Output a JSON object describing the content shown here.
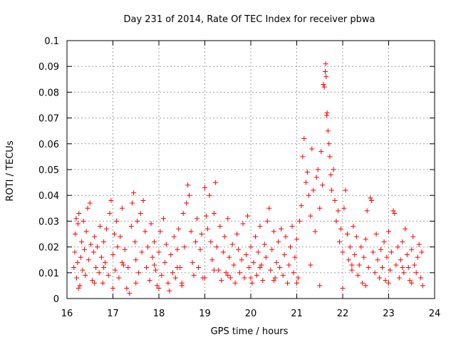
{
  "chart_data": {
    "type": "scatter",
    "title": "Day 231 of 2014, Rate Of TEC Index for receiver pbwa",
    "xlabel": "GPS time / hours",
    "ylabel": "ROTI / TECUs",
    "xlim": [
      16,
      24
    ],
    "ylim": [
      0,
      0.1
    ],
    "x_ticks": [
      16,
      17,
      18,
      19,
      20,
      21,
      22,
      23,
      24
    ],
    "y_ticks": [
      0,
      0.01,
      0.02,
      0.03,
      0.04,
      0.05,
      0.06,
      0.07,
      0.08,
      0.09,
      0.1
    ],
    "x_tick_labels": [
      "16",
      "17",
      "18",
      "19",
      "20",
      "21",
      "22",
      "23",
      "24"
    ],
    "y_tick_labels": [
      "0",
      "0.01",
      "0.02",
      "0.03",
      "0.04",
      "0.05",
      "0.06",
      "0.07",
      "0.08",
      "0.09",
      "0.1"
    ],
    "grid": true,
    "marker": "+",
    "color": "#ff0000",
    "series": [
      {
        "name": "ROTI",
        "points": [
          [
            16.15,
            0.012
          ],
          [
            16.17,
            0.018
          ],
          [
            16.18,
            0.025
          ],
          [
            16.2,
            0.031
          ],
          [
            16.21,
            0.008
          ],
          [
            16.23,
            0.014
          ],
          [
            16.24,
            0.029
          ],
          [
            16.26,
            0.033
          ],
          [
            16.28,
            0.005
          ],
          [
            16.3,
            0.016
          ],
          [
            16.32,
            0.022
          ],
          [
            16.34,
            0.011
          ],
          [
            16.36,
            0.03
          ],
          [
            16.38,
            0.019
          ],
          [
            16.4,
            0.009
          ],
          [
            16.42,
            0.026
          ],
          [
            16.45,
            0.035
          ],
          [
            16.47,
            0.015
          ],
          [
            16.5,
            0.037
          ],
          [
            16.52,
            0.021
          ],
          [
            16.55,
            0.007
          ],
          [
            16.58,
            0.018
          ],
          [
            16.6,
            0.024
          ],
          [
            16.63,
            0.012
          ],
          [
            16.66,
            0.02
          ],
          [
            16.7,
            0.01
          ],
          [
            16.72,
            0.028
          ],
          [
            16.75,
            0.016
          ],
          [
            16.78,
            0.006
          ],
          [
            16.8,
            0.022
          ],
          [
            16.83,
            0.014
          ],
          [
            16.86,
            0.027
          ],
          [
            16.9,
            0.009
          ],
          [
            16.93,
            0.033
          ],
          [
            16.96,
            0.038
          ],
          [
            17.0,
            0.017
          ],
          [
            17.03,
            0.025
          ],
          [
            17.05,
            0.011
          ],
          [
            17.08,
            0.03
          ],
          [
            17.1,
            0.02
          ],
          [
            17.13,
            0.008
          ],
          [
            17.16,
            0.024
          ],
          [
            17.2,
            0.035
          ],
          [
            17.23,
            0.013
          ],
          [
            17.26,
            0.019
          ],
          [
            17.3,
            0.004
          ],
          [
            17.33,
            0.012
          ],
          [
            17.36,
            0.002
          ],
          [
            17.4,
            0.028
          ],
          [
            17.42,
            0.037
          ],
          [
            17.45,
            0.041
          ],
          [
            17.48,
            0.022
          ],
          [
            17.5,
            0.015
          ],
          [
            17.53,
            0.03
          ],
          [
            17.56,
            0.01
          ],
          [
            17.6,
            0.033
          ],
          [
            17.63,
            0.018
          ],
          [
            17.66,
            0.038
          ],
          [
            17.7,
            0.026
          ],
          [
            17.73,
            0.012
          ],
          [
            17.76,
            0.02
          ],
          [
            17.8,
            0.007
          ],
          [
            17.83,
            0.029
          ],
          [
            17.86,
            0.016
          ],
          [
            17.9,
            0.022
          ],
          [
            17.93,
            0.011
          ],
          [
            17.96,
            0.005
          ],
          [
            18.0,
            0.018
          ],
          [
            18.03,
            0.026
          ],
          [
            18.06,
            0.009
          ],
          [
            18.1,
            0.031
          ],
          [
            18.13,
            0.014
          ],
          [
            18.16,
            0.021
          ],
          [
            18.2,
            0.006
          ],
          [
            18.23,
            0.003
          ],
          [
            18.26,
            0.017
          ],
          [
            18.3,
            0.01
          ],
          [
            18.33,
            0.024
          ],
          [
            18.36,
            0.008
          ],
          [
            18.4,
            0.019
          ],
          [
            18.43,
            0.027
          ],
          [
            18.46,
            0.012
          ],
          [
            18.5,
            0.005
          ],
          [
            18.53,
            0.033
          ],
          [
            18.56,
            0.02
          ],
          [
            18.6,
            0.037
          ],
          [
            18.63,
            0.044
          ],
          [
            18.66,
            0.04
          ],
          [
            18.7,
            0.026
          ],
          [
            18.73,
            0.014
          ],
          [
            18.76,
            0.009
          ],
          [
            18.8,
            0.022
          ],
          [
            18.83,
            0.031
          ],
          [
            18.86,
            0.012
          ],
          [
            18.9,
            0.019
          ],
          [
            18.93,
            0.025
          ],
          [
            18.96,
            0.008
          ],
          [
            19.0,
            0.043
          ],
          [
            19.03,
            0.032
          ],
          [
            19.06,
            0.027
          ],
          [
            19.1,
            0.04
          ],
          [
            19.13,
            0.022
          ],
          [
            19.16,
            0.015
          ],
          [
            19.2,
            0.033
          ],
          [
            19.23,
            0.045
          ],
          [
            19.26,
            0.02
          ],
          [
            19.3,
            0.011
          ],
          [
            19.33,
            0.028
          ],
          [
            19.36,
            0.007
          ],
          [
            19.4,
            0.018
          ],
          [
            19.43,
            0.024
          ],
          [
            19.46,
            0.01
          ],
          [
            19.5,
            0.031
          ],
          [
            19.53,
            0.016
          ],
          [
            19.56,
            0.008
          ],
          [
            19.6,
            0.021
          ],
          [
            19.63,
            0.013
          ],
          [
            19.66,
            0.006
          ],
          [
            19.7,
            0.025
          ],
          [
            19.73,
            0.019
          ],
          [
            19.76,
            0.01
          ],
          [
            19.8,
            0.015
          ],
          [
            19.83,
            0.029
          ],
          [
            19.86,
            0.008
          ],
          [
            19.9,
            0.017
          ],
          [
            19.93,
            0.032
          ],
          [
            19.96,
            0.012
          ],
          [
            20.0,
            0.02
          ],
          [
            20.03,
            0.006
          ],
          [
            20.06,
            0.014
          ],
          [
            20.1,
            0.024
          ],
          [
            20.13,
            0.009
          ],
          [
            20.16,
            0.018
          ],
          [
            20.2,
            0.028
          ],
          [
            20.23,
            0.013
          ],
          [
            20.26,
            0.007
          ],
          [
            20.3,
            0.021
          ],
          [
            20.33,
            0.016
          ],
          [
            20.36,
            0.03
          ],
          [
            20.4,
            0.035
          ],
          [
            20.43,
            0.011
          ],
          [
            20.46,
            0.019
          ],
          [
            20.5,
            0.026
          ],
          [
            20.53,
            0.008
          ],
          [
            20.56,
            0.014
          ],
          [
            20.6,
            0.022
          ],
          [
            20.63,
            0.012
          ],
          [
            20.66,
            0.027
          ],
          [
            20.7,
            0.009
          ],
          [
            20.73,
            0.017
          ],
          [
            20.76,
            0.024
          ],
          [
            20.8,
            0.006
          ],
          [
            20.83,
            0.013
          ],
          [
            20.86,
            0.02
          ],
          [
            20.9,
            0.028
          ],
          [
            20.93,
            0.01
          ],
          [
            20.96,
            0.016
          ],
          [
            21.0,
            0.023
          ],
          [
            21.03,
            0.008
          ],
          [
            21.06,
            0.03
          ],
          [
            21.1,
            0.036
          ],
          [
            21.13,
            0.055
          ],
          [
            21.16,
            0.062
          ],
          [
            21.2,
            0.045
          ],
          [
            21.23,
            0.049
          ],
          [
            21.26,
            0.04
          ],
          [
            21.3,
            0.032
          ],
          [
            21.33,
            0.058
          ],
          [
            21.36,
            0.042
          ],
          [
            21.4,
            0.026
          ],
          [
            21.43,
            0.047
          ],
          [
            21.46,
            0.05
          ],
          [
            21.5,
            0.035
          ],
          [
            21.53,
            0.057
          ],
          [
            21.56,
            0.044
          ],
          [
            21.58,
            0.083
          ],
          [
            21.6,
            0.082
          ],
          [
            21.62,
            0.088
          ],
          [
            21.63,
            0.091
          ],
          [
            21.64,
            0.086
          ],
          [
            21.65,
            0.071
          ],
          [
            21.66,
            0.072
          ],
          [
            21.68,
            0.065
          ],
          [
            21.7,
            0.06
          ],
          [
            21.72,
            0.055
          ],
          [
            21.74,
            0.048
          ],
          [
            21.76,
            0.042
          ],
          [
            21.8,
            0.05
          ],
          [
            21.83,
            0.038
          ],
          [
            21.86,
            0.03
          ],
          [
            21.9,
            0.034
          ],
          [
            21.93,
            0.022
          ],
          [
            21.96,
            0.027
          ],
          [
            22.0,
            0.018
          ],
          [
            22.03,
            0.035
          ],
          [
            22.06,
            0.042
          ],
          [
            22.1,
            0.025
          ],
          [
            22.13,
            0.015
          ],
          [
            22.16,
            0.02
          ],
          [
            22.2,
            0.011
          ],
          [
            22.23,
            0.028
          ],
          [
            22.26,
            0.017
          ],
          [
            22.3,
            0.024
          ],
          [
            22.33,
            0.009
          ],
          [
            22.36,
            0.013
          ],
          [
            22.4,
            0.02
          ],
          [
            22.43,
            0.006
          ],
          [
            22.46,
            0.016
          ],
          [
            22.5,
            0.023
          ],
          [
            22.53,
            0.034
          ],
          [
            22.56,
            0.012
          ],
          [
            22.6,
            0.039
          ],
          [
            22.63,
            0.038
          ],
          [
            22.66,
            0.018
          ],
          [
            22.7,
            0.01
          ],
          [
            22.73,
            0.025
          ],
          [
            22.76,
            0.015
          ],
          [
            22.8,
            0.008
          ],
          [
            22.83,
            0.019
          ],
          [
            22.86,
            0.012
          ],
          [
            22.9,
            0.022
          ],
          [
            22.93,
            0.007
          ],
          [
            22.96,
            0.016
          ],
          [
            23.0,
            0.026
          ],
          [
            23.03,
            0.011
          ],
          [
            23.06,
            0.018
          ],
          [
            23.1,
            0.034
          ],
          [
            23.13,
            0.033
          ],
          [
            23.16,
            0.013
          ],
          [
            23.2,
            0.02
          ],
          [
            23.23,
            0.008
          ],
          [
            23.26,
            0.015
          ],
          [
            23.3,
            0.022
          ],
          [
            23.33,
            0.01
          ],
          [
            23.36,
            0.027
          ],
          [
            23.4,
            0.017
          ],
          [
            23.43,
            0.012
          ],
          [
            23.46,
            0.007
          ],
          [
            23.5,
            0.019
          ],
          [
            23.53,
            0.024
          ],
          [
            23.56,
            0.013
          ],
          [
            23.6,
            0.01
          ],
          [
            23.63,
            0.016
          ],
          [
            23.66,
            0.021
          ],
          [
            23.7,
            0.008
          ],
          [
            23.72,
            0.018
          ],
          [
            23.74,
            0.005
          ],
          [
            16.25,
            0.004
          ],
          [
            16.6,
            0.006
          ],
          [
            17.0,
            0.004
          ],
          [
            17.5,
            0.006
          ],
          [
            18.0,
            0.004
          ],
          [
            18.5,
            0.006
          ],
          [
            19.0,
            0.008
          ],
          [
            19.5,
            0.009
          ],
          [
            20.0,
            0.008
          ],
          [
            20.5,
            0.007
          ],
          [
            21.0,
            0.006
          ],
          [
            21.5,
            0.005
          ],
          [
            22.0,
            0.004
          ],
          [
            22.5,
            0.005
          ],
          [
            23.0,
            0.006
          ],
          [
            23.5,
            0.006
          ],
          [
            16.8,
            0.012
          ],
          [
            17.2,
            0.014
          ],
          [
            17.9,
            0.013
          ],
          [
            18.4,
            0.012
          ],
          [
            19.2,
            0.011
          ],
          [
            20.2,
            0.012
          ],
          [
            21.3,
            0.013
          ],
          [
            22.2,
            0.013
          ],
          [
            23.3,
            0.012
          ]
        ]
      }
    ]
  }
}
